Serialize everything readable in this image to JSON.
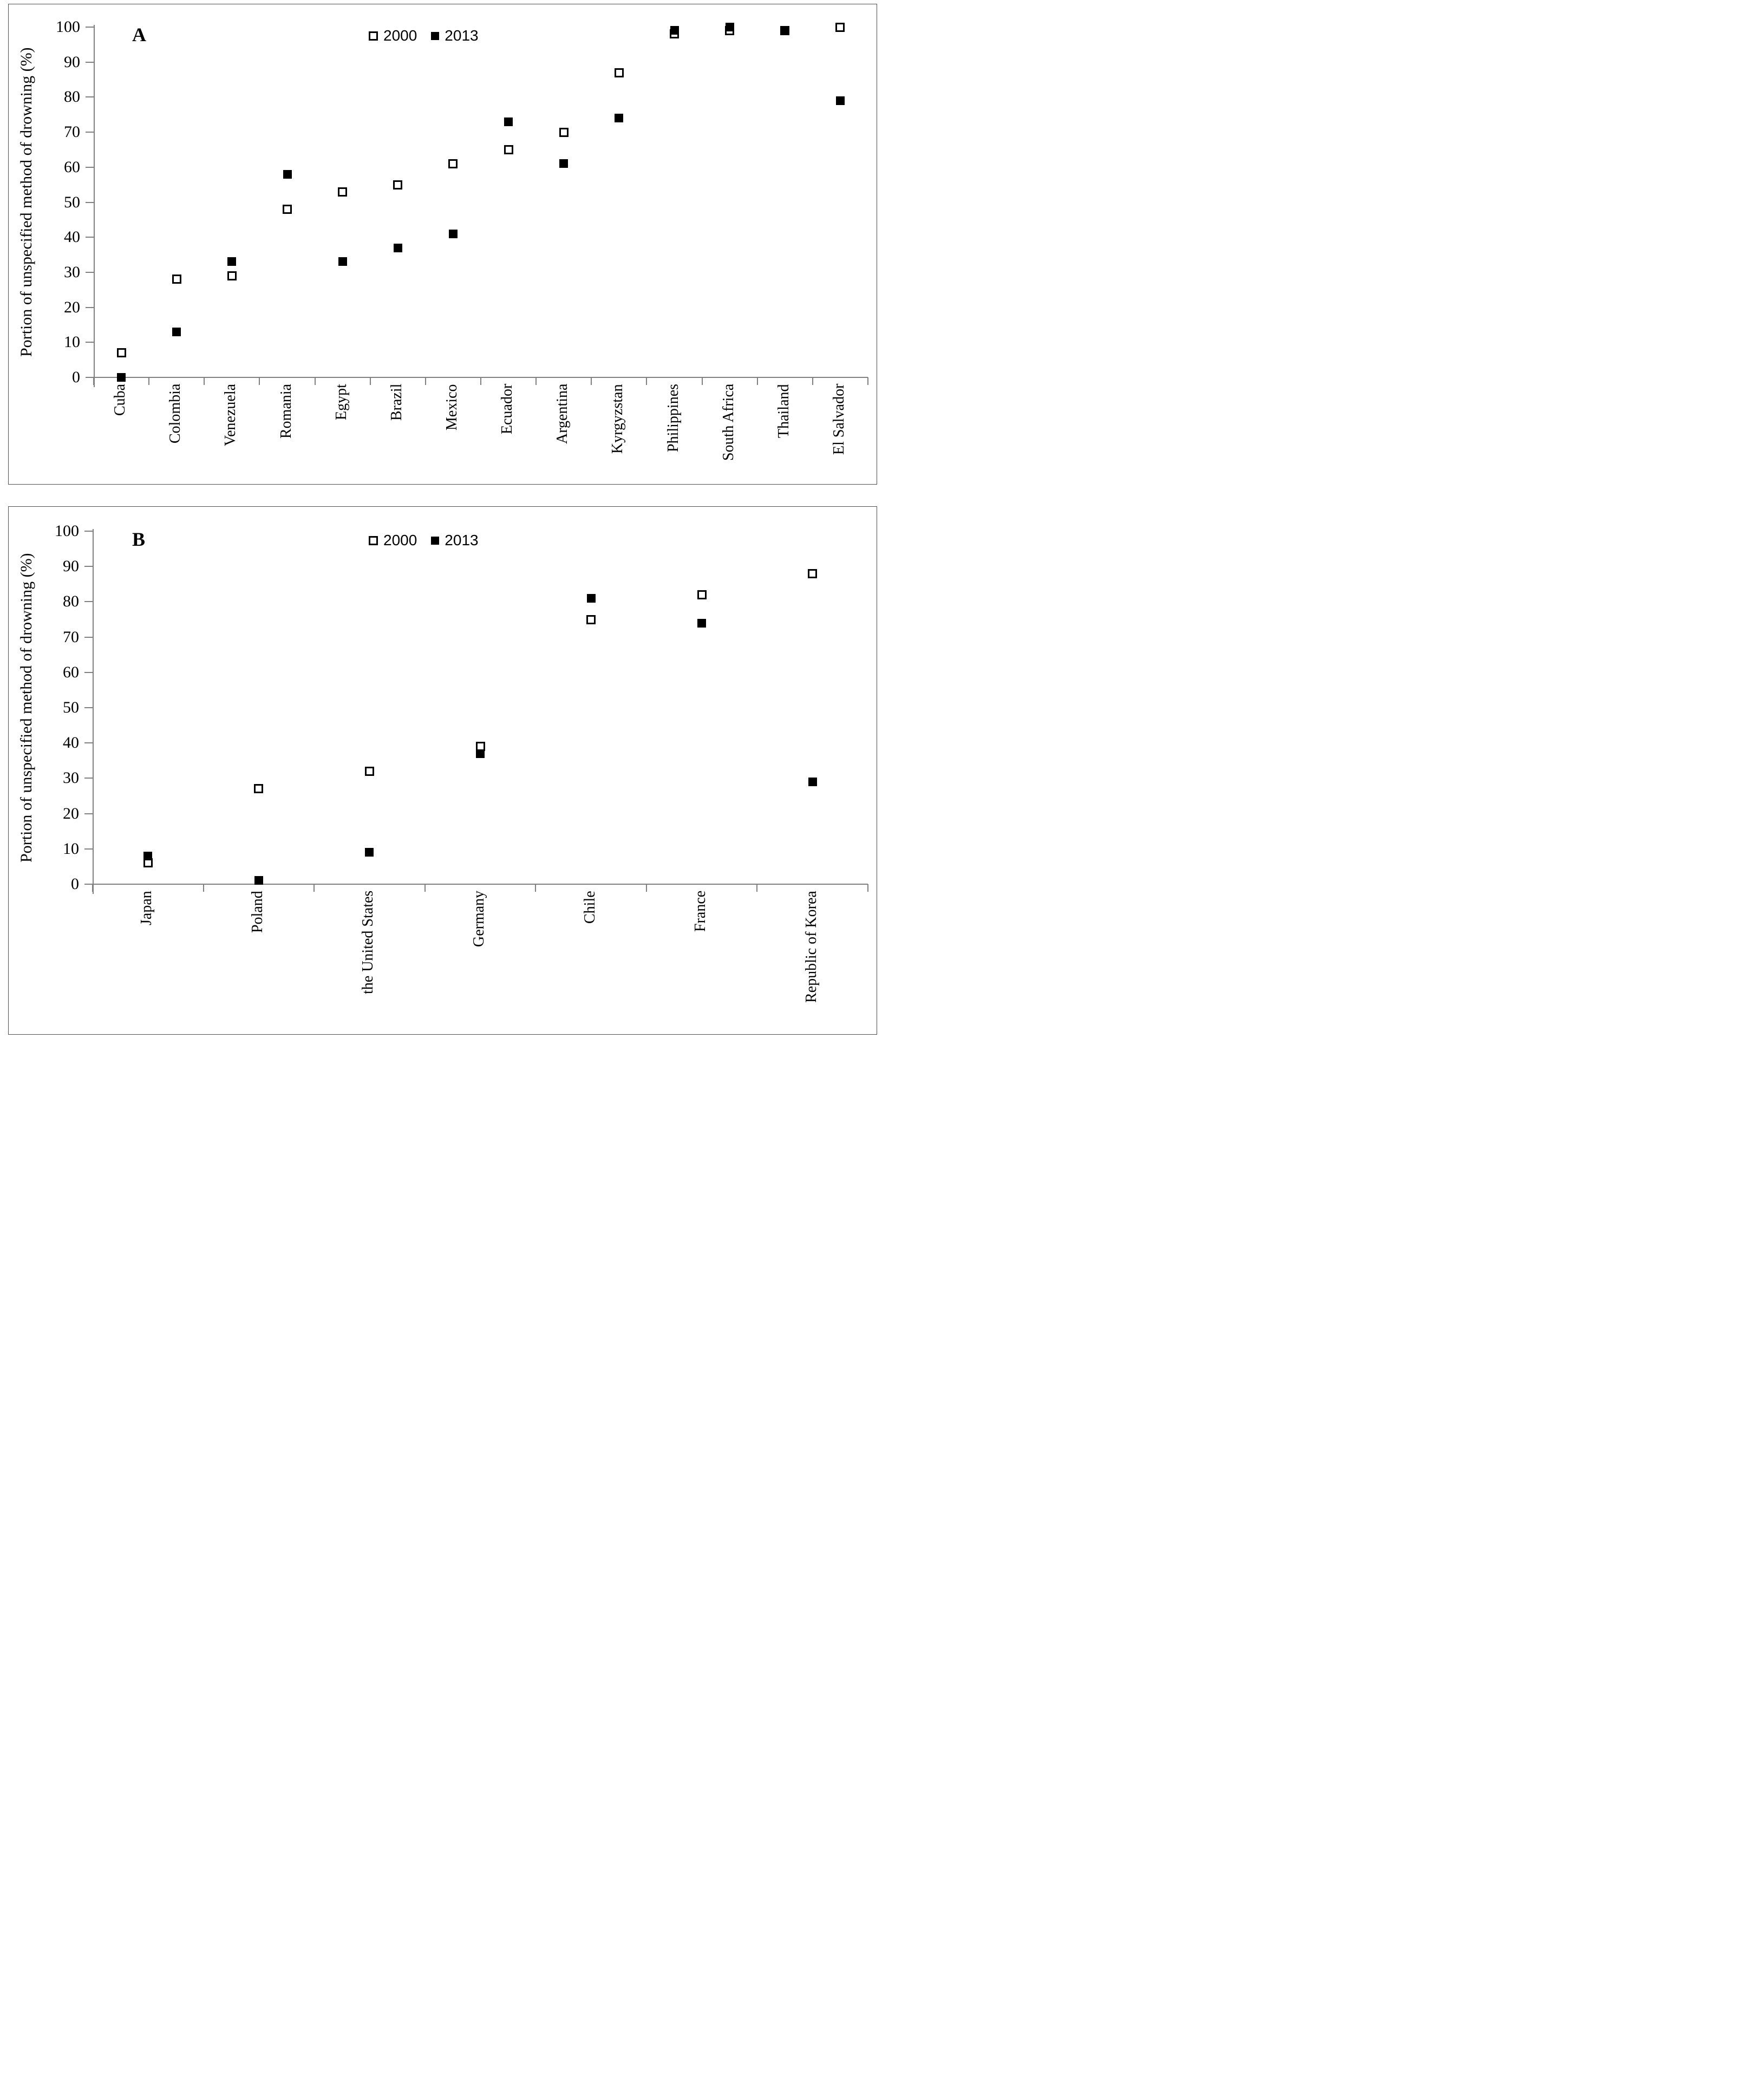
{
  "figure": {
    "background": "#ffffff",
    "marker_color": "#000000",
    "axis_color": "#808080",
    "frame_color": "#4d4d4d"
  },
  "chart_data": [
    {
      "type": "scatter",
      "panel_label": "A",
      "ylabel": "Portion of unspecified method of drowning  (%)",
      "ylim": [
        0,
        100
      ],
      "ytick_step": 10,
      "grid": false,
      "legend_position": "top-center",
      "categories": [
        "Cuba",
        "Colombia",
        "Venezuela",
        "Romania",
        "Egypt",
        "Brazil",
        "Mexico",
        "Ecuador",
        "Argentina",
        "Kyrgyzstan",
        "Philippines",
        "South Africa",
        "Thailand",
        "El Salvador"
      ],
      "series": [
        {
          "name": "2000",
          "marker": "open-square",
          "values": [
            7,
            28,
            29,
            48,
            53,
            55,
            61,
            65,
            70,
            87,
            98,
            99,
            99,
            100
          ]
        },
        {
          "name": "2013",
          "marker": "filled-square",
          "values": [
            0,
            13,
            33,
            58,
            33,
            37,
            41,
            73,
            61,
            74,
            99,
            100,
            99,
            79
          ]
        }
      ]
    },
    {
      "type": "scatter",
      "panel_label": "B",
      "ylabel": "Portion of unspecified method of drowning  (%)",
      "ylim": [
        0,
        100
      ],
      "ytick_step": 10,
      "grid": false,
      "legend_position": "top-center",
      "categories": [
        "Japan",
        "Poland",
        "the United States",
        "Germany",
        "Chile",
        "France",
        "Republic of Korea"
      ],
      "series": [
        {
          "name": "2000",
          "marker": "open-square",
          "values": [
            6,
            27,
            32,
            39,
            75,
            82,
            88
          ]
        },
        {
          "name": "2013",
          "marker": "filled-square",
          "values": [
            8,
            1,
            9,
            37,
            81,
            74,
            29
          ]
        }
      ]
    }
  ]
}
